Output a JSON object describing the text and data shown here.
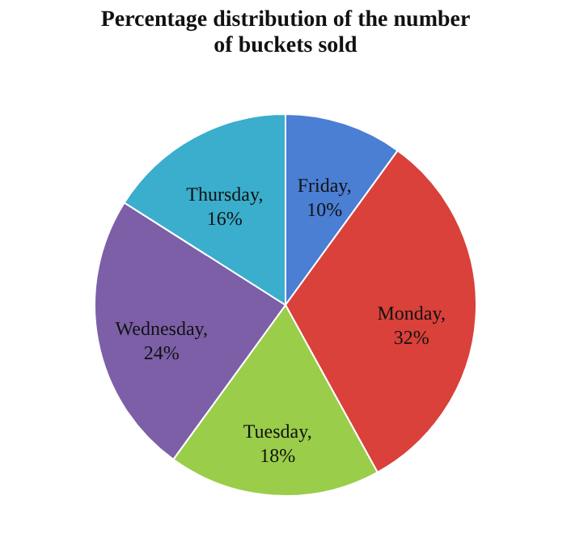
{
  "chart_data": {
    "type": "pie",
    "title": "Percentage distribution  of the number of buckets sold",
    "categories": [
      null,
      null,
      null,
      null,
      null
    ],
    "values": [
      10,
      32,
      18,
      24,
      16
    ],
    "value_labels": [
      "Friday, 10%",
      "Monday, 32%",
      "Tuesday, 18%",
      "Wednesday, 24%",
      "Thursday, 16%"
    ],
    "colors": [
      "#4a7fd4",
      "#d9413a",
      "#9acd4a",
      "#7d5fa8",
      "#3aaecc"
    ],
    "legend": false
  }
}
